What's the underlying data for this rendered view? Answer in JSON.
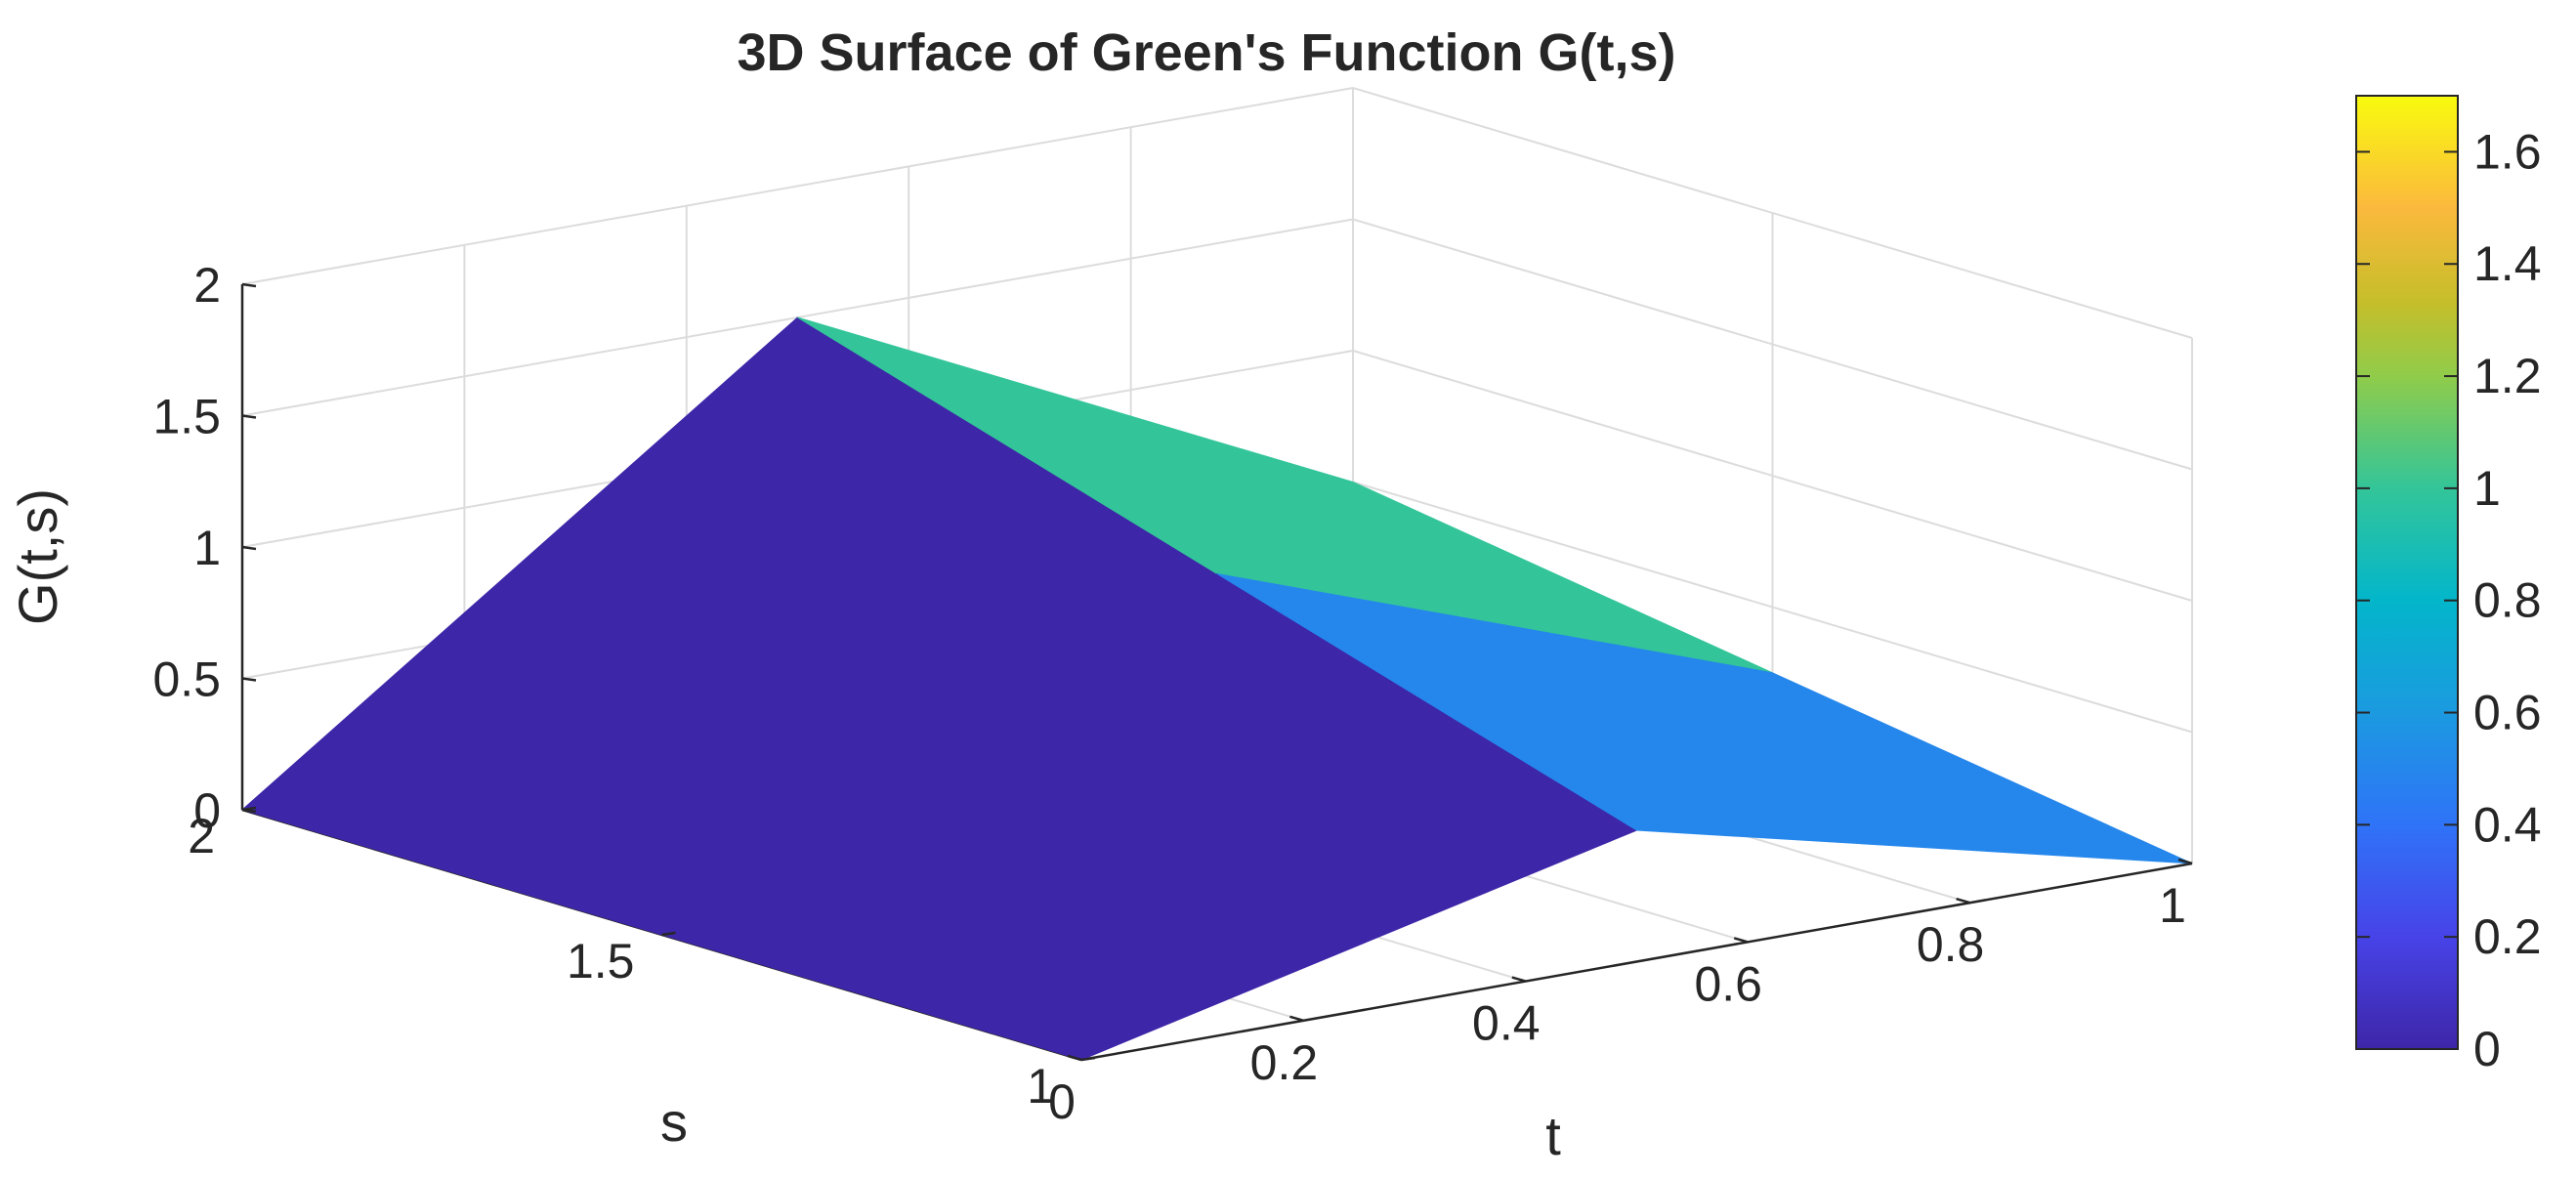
{
  "chart_data": {
    "type": "surface3d",
    "title": "3D Surface of Green's Function G(t,s)",
    "xlabel": "t",
    "ylabel": "s",
    "zlabel": "G(t,s)",
    "xlim": [
      0,
      1
    ],
    "ylim": [
      1,
      2
    ],
    "zlim": [
      0,
      2
    ],
    "xticks": [
      "0",
      "0.2",
      "0.4",
      "0.6",
      "0.8",
      "1"
    ],
    "yticks": [
      "1",
      "1.5",
      "2"
    ],
    "zticks": [
      "0",
      "0.5",
      "1",
      "1.5",
      "2"
    ],
    "grid": true,
    "colormap": "parula",
    "colorbar": {
      "clim": [
        0,
        1.7
      ],
      "ticks": [
        "0",
        "0.2",
        "0.4",
        "0.6",
        "0.8",
        "1",
        "1.2",
        "1.4",
        "1.6"
      ]
    },
    "t": [
      0,
      0.5,
      1
    ],
    "s": [
      1,
      1.5,
      2
    ],
    "G": [
      [
        0,
        0.5,
        0
      ],
      [
        0,
        1.0,
        0.25
      ],
      [
        0,
        1.5,
        0.5
      ]
    ]
  }
}
